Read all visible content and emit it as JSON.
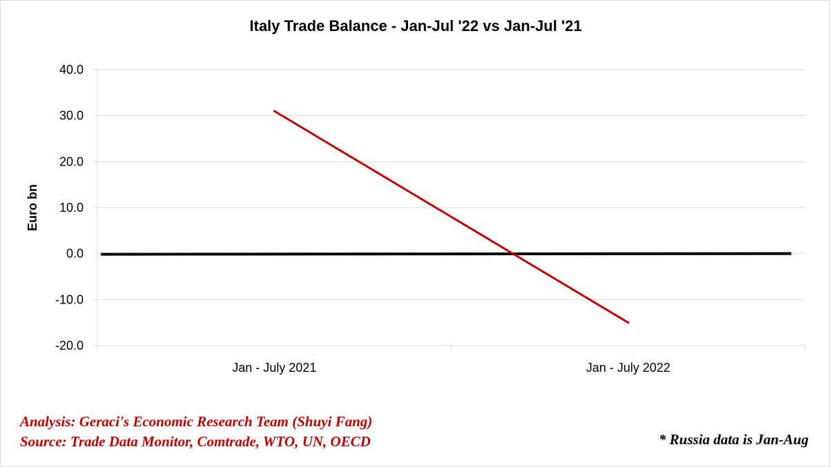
{
  "chart_data": {
    "type": "line",
    "title": "Italy Trade Balance - Jan-Jul '22 vs Jan-Jul '21",
    "ylabel": "Euro bn",
    "xlabel": "",
    "categories": [
      "Jan - July 2021",
      "Jan - July 2022"
    ],
    "series": [
      {
        "values": [
          31.0,
          -15.0
        ],
        "color": "#c00000"
      }
    ],
    "zero_line": {
      "color": "#000000"
    },
    "ylim": [
      -20,
      40
    ],
    "yticks": [
      40,
      30,
      20,
      10,
      0,
      -10,
      -20
    ],
    "ytick_labels": [
      "40.0",
      "30.0",
      "20.0",
      "10.0",
      "0.0",
      "-10.0",
      "-20.0"
    ],
    "grid": true,
    "legend": "none"
  },
  "credits": {
    "analysis": "Analysis: Geraci's Economic Research Team (Shuyi Fang)",
    "source": "Source: Trade Data Monitor, Comtrade, WTO, UN, OECD",
    "footnote": "* Russia data is Jan-Aug"
  },
  "colors": {
    "series": "#c00000",
    "zero_line": "#000000",
    "grid": "#d9d9d9",
    "credit_text": "#c00000"
  }
}
